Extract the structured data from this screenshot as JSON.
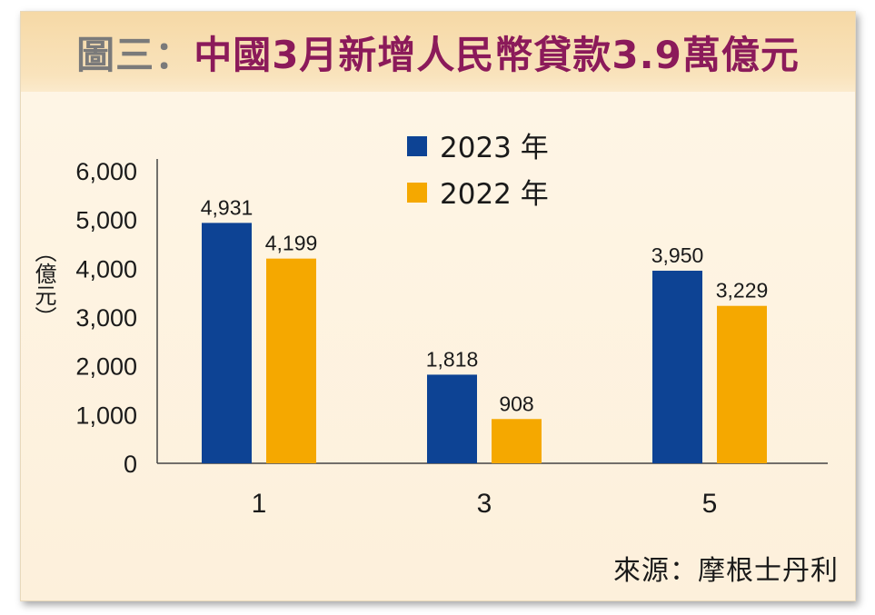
{
  "title": {
    "prefix": "圖三：",
    "main": "中國3月新增人民幣貸款3.9萬億元"
  },
  "source": "來源：摩根士丹利",
  "colors": {
    "series_2023": "#0d4394",
    "series_2022": "#f5a800",
    "title": "#8b1a5a"
  },
  "chart_data": {
    "type": "bar",
    "categories": [
      "1",
      "3",
      "5"
    ],
    "series": [
      {
        "name": "2023 年",
        "values": [
          4931,
          1818,
          3950
        ],
        "labels": [
          "4,931",
          "1,818",
          "3,950"
        ]
      },
      {
        "name": "2022 年",
        "values": [
          4199,
          908,
          3229
        ],
        "labels": [
          "4,199",
          "908",
          "3,229"
        ]
      }
    ],
    "ylabel": "（億元）",
    "ylim": [
      0,
      6000
    ],
    "yticks": [
      0,
      1000,
      2000,
      3000,
      4000,
      5000,
      6000
    ],
    "ytick_labels": [
      "0",
      "1,000",
      "2,000",
      "3,000",
      "4,000",
      "5,000",
      "6,000"
    ],
    "legend_position": "top-center",
    "grid": false
  }
}
